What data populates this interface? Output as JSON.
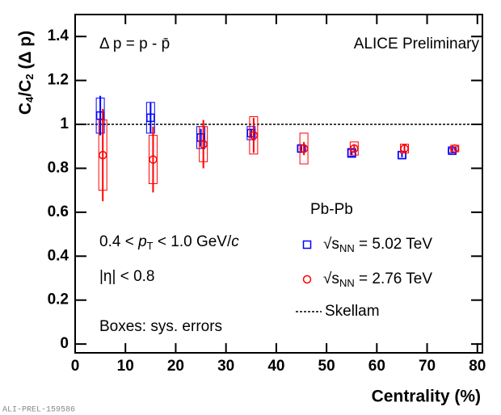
{
  "chart_data": {
    "type": "scatter",
    "x_label": "Centrality (%)",
    "y_label": [
      "C",
      "4",
      "/C",
      "2",
      " (Δ p)"
    ],
    "annotations": {
      "definition": "Δ p = p - p̄",
      "experiment": "ALICE Preliminary",
      "system": "Pb-Pb",
      "pt_cut": [
        "0.4 < ",
        "p",
        "T",
        " < 1.0 GeV/",
        "c"
      ],
      "eta_cut": "|η| < 0.8",
      "boxes_note": "Boxes: sys. errors",
      "footer": "ALI-PREL-159586"
    },
    "xlim": [
      0,
      81
    ],
    "ylim": [
      -0.04,
      1.5
    ],
    "xticks": [
      0,
      10,
      20,
      30,
      40,
      50,
      60,
      70,
      80
    ],
    "yticks": [
      0,
      0.2,
      0.4,
      0.6,
      0.8,
      1,
      1.2,
      1.4
    ],
    "series": [
      {
        "name": [
          "√s",
          "NN",
          " = 5.02 TeV"
        ],
        "color": "#0000ff",
        "marker": "square",
        "x": [
          5,
          15,
          25,
          35,
          45,
          55,
          65,
          75
        ],
        "values": [
          1.04,
          1.03,
          0.94,
          0.96,
          0.89,
          0.87,
          0.86,
          0.88
        ],
        "errors": [
          0.09,
          0.07,
          0.04,
          0.02,
          0.01,
          0.01,
          0.01,
          0.01
        ],
        "sys_errors": [
          0.08,
          0.07,
          0.05,
          0.03,
          0.015,
          0.02,
          0.015,
          0.01
        ]
      },
      {
        "name": [
          "√s",
          "NN",
          " = 2.76 TeV"
        ],
        "color": "#ff0000",
        "marker": "circle",
        "x": [
          5.5,
          15.5,
          25.5,
          35.5,
          45.5,
          55.5,
          65.5,
          75.5
        ],
        "values": [
          0.86,
          0.84,
          0.91,
          0.95,
          0.89,
          0.89,
          0.89,
          0.89
        ],
        "errors": [
          0.21,
          0.15,
          0.11,
          0.08,
          0.03,
          0.02,
          0.02,
          0.01
        ],
        "sys_errors": [
          0.16,
          0.11,
          0.08,
          0.085,
          0.07,
          0.03,
          0.02,
          0.015
        ]
      }
    ],
    "reference_line": {
      "name": "Skellam",
      "value": 1,
      "style": "dotted"
    }
  }
}
